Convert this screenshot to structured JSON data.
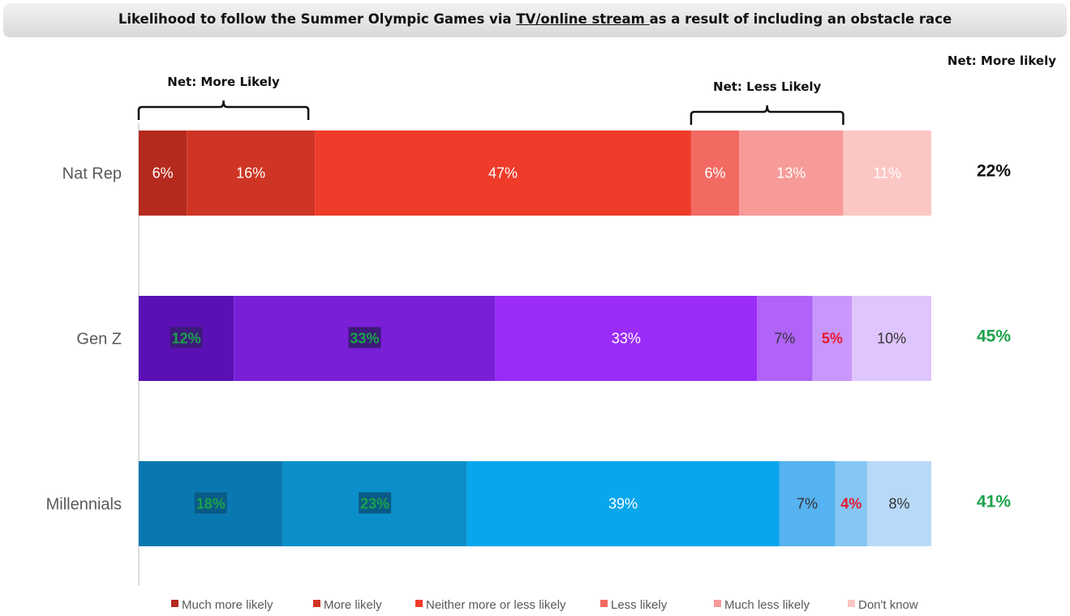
{
  "title": {
    "prefix": "Likelihood to follow the Summer Olympic Games via ",
    "underlined": "TV/online stream ",
    "suffix": "as a result of including an obstacle race"
  },
  "net_column_header": "Net: More likely",
  "brackets": {
    "more": "Net: More Likely",
    "less": "Net: Less Likely"
  },
  "chart_data": {
    "type": "bar",
    "orientation": "horizontal",
    "stacked": true,
    "title": "Likelihood to follow the Summer Olympic Games via TV/online stream as a result of including an obstacle race",
    "categories": [
      "Nat Rep",
      "Gen Z",
      "Millennials"
    ],
    "series": [
      {
        "name": "Much more likely",
        "values": [
          6,
          12,
          18
        ]
      },
      {
        "name": "More likely",
        "values": [
          16,
          33,
          23
        ]
      },
      {
        "name": "Neither more or less likely",
        "values": [
          47,
          33,
          39
        ]
      },
      {
        "name": "Less likely",
        "values": [
          6,
          7,
          7
        ]
      },
      {
        "name": "Much less likely",
        "values": [
          13,
          5,
          4
        ]
      },
      {
        "name": "Don't know",
        "values": [
          11,
          10,
          8
        ]
      }
    ],
    "net_more_likely": [
      22,
      45,
      41
    ],
    "value_suffix": "%",
    "legend_position": "bottom",
    "row_colors": [
      [
        "#b52a1f",
        "#cf3524",
        "#ef3b2a",
        "#f26a62",
        "#f79b99",
        "#fbc7c5"
      ],
      [
        "#5a10b4",
        "#7a1fd8",
        "#9b2cf7",
        "#b163f8",
        "#c897fb",
        "#dfc5fd"
      ],
      [
        "#0a78b0",
        "#0b8fcb",
        "#08a6ec",
        "#56b2f0",
        "#85c6f4",
        "#b8daf8"
      ]
    ],
    "legend_colors": [
      "#b52a1f",
      "#cf3524",
      "#ef3b2a",
      "#f26a62",
      "#f79b99",
      "#fbc7c5"
    ],
    "highlight": {
      "green": "#1aa34a",
      "red": "#e8192c",
      "box": "#3d1a7a",
      "box_blue": "#0a5a86",
      "net_nat": "#111111"
    }
  }
}
